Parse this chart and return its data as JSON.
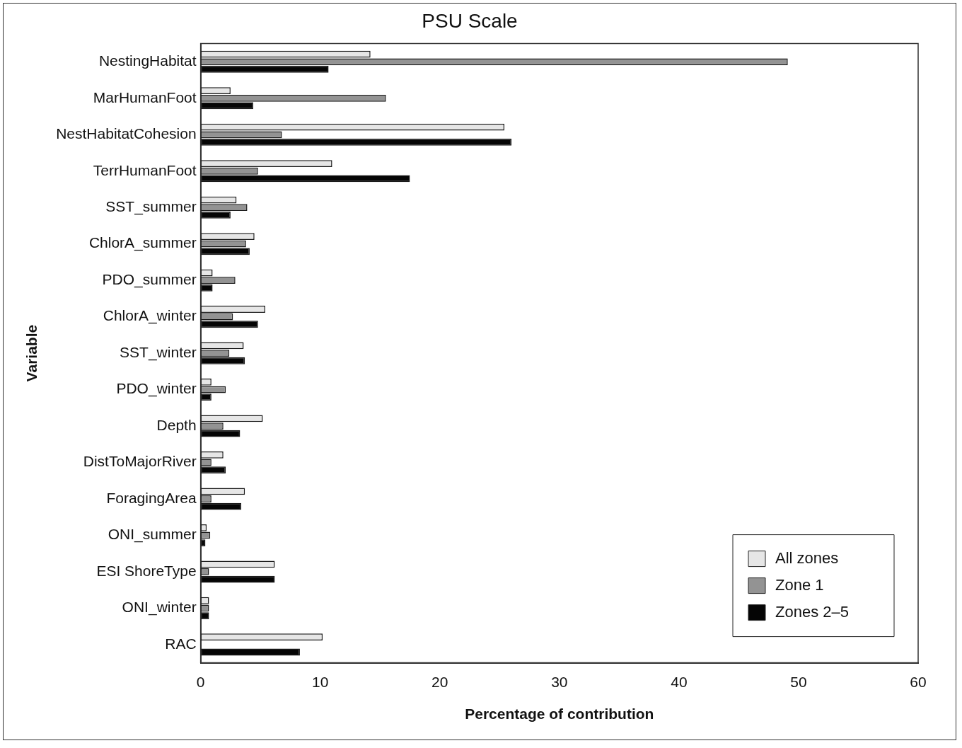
{
  "chart_data": {
    "type": "bar",
    "orientation": "horizontal",
    "title": "PSU Scale",
    "xlabel": "Percentage of contribution",
    "ylabel": "Variable",
    "categories": [
      "NestingHabitat",
      "MarHumanFoot",
      "NestHabitatCohesion",
      "TerrHumanFoot",
      "SST_summer",
      "ChlorA_summer",
      "PDO_summer",
      "ChlorA_winter",
      "SST_winter",
      "PDO_winter",
      "Depth",
      "DistToMajorRiver",
      "ForagingArea",
      "ONI_summer",
      "ESI ShoreType",
      "ONI_winter",
      "RAC"
    ],
    "series": [
      {
        "name": "All zones",
        "color": "#e6e6e6",
        "values": [
          14.2,
          2.5,
          25.4,
          11.0,
          3.0,
          4.5,
          1.0,
          5.4,
          3.6,
          0.9,
          5.2,
          1.9,
          3.7,
          0.5,
          6.2,
          0.7,
          10.2
        ]
      },
      {
        "name": "Zone 1",
        "color": "#939393",
        "values": [
          49.1,
          15.5,
          6.8,
          4.8,
          3.9,
          3.8,
          2.9,
          2.7,
          2.4,
          2.1,
          1.9,
          0.9,
          0.9,
          0.8,
          0.7,
          0.7,
          0
        ]
      },
      {
        "name": "Zones 2–5",
        "color": "#050505",
        "values": [
          10.7,
          4.4,
          26.0,
          17.5,
          2.5,
          4.1,
          1.0,
          4.8,
          3.7,
          0.9,
          3.3,
          2.1,
          3.4,
          0.4,
          6.2,
          0.7,
          8.3
        ]
      }
    ],
    "xlim": [
      0,
      60
    ],
    "xticks": [
      0,
      10,
      20,
      30,
      40,
      50,
      60
    ],
    "grid": false,
    "legend": "bottom right"
  }
}
